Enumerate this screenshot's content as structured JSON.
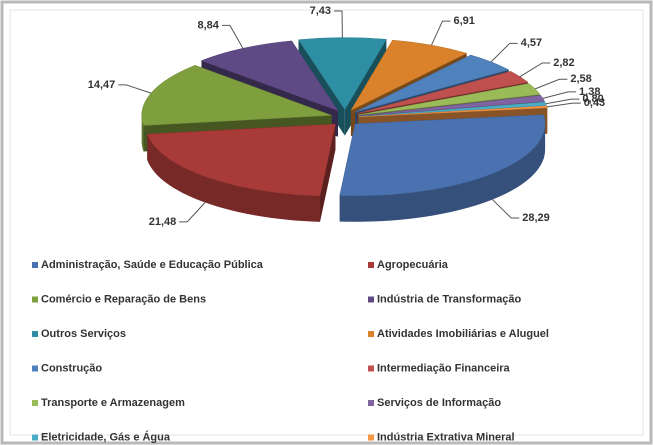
{
  "chart_data": {
    "type": "pie",
    "categories": [
      "Administração, Saúde e Educação Pública",
      "Agropecuária",
      "Comércio e Reparação de Bens",
      "Indústria de Transformação",
      "Outros Serviços",
      "Atividades Imobiliárias e Aluguel",
      "Construção",
      "Intermediação Financeira",
      "Transporte e Armazenagem",
      "Serviços de Informação",
      "Eletricidade, Gás e Água",
      "Indústria Extrativa Mineral"
    ],
    "values": [
      28.29,
      21.48,
      14.47,
      8.84,
      7.43,
      6.91,
      4.57,
      2.82,
      2.58,
      1.38,
      0.8,
      0.43
    ],
    "value_labels": [
      "28,29",
      "21,48",
      "14,47",
      "8,84",
      "7,43",
      "6,91",
      "4,57",
      "2,82",
      "2,58",
      "1,38",
      "0,80",
      "0,43"
    ],
    "colors": [
      "#4a72b0",
      "#a83a38",
      "#7f9f3e",
      "#5f4a86",
      "#2e8fa4",
      "#d9822b",
      "#4f81bd",
      "#c0504d",
      "#9bbb59",
      "#8064a2",
      "#4bacc6",
      "#f79646"
    ],
    "legend": "bottom"
  }
}
